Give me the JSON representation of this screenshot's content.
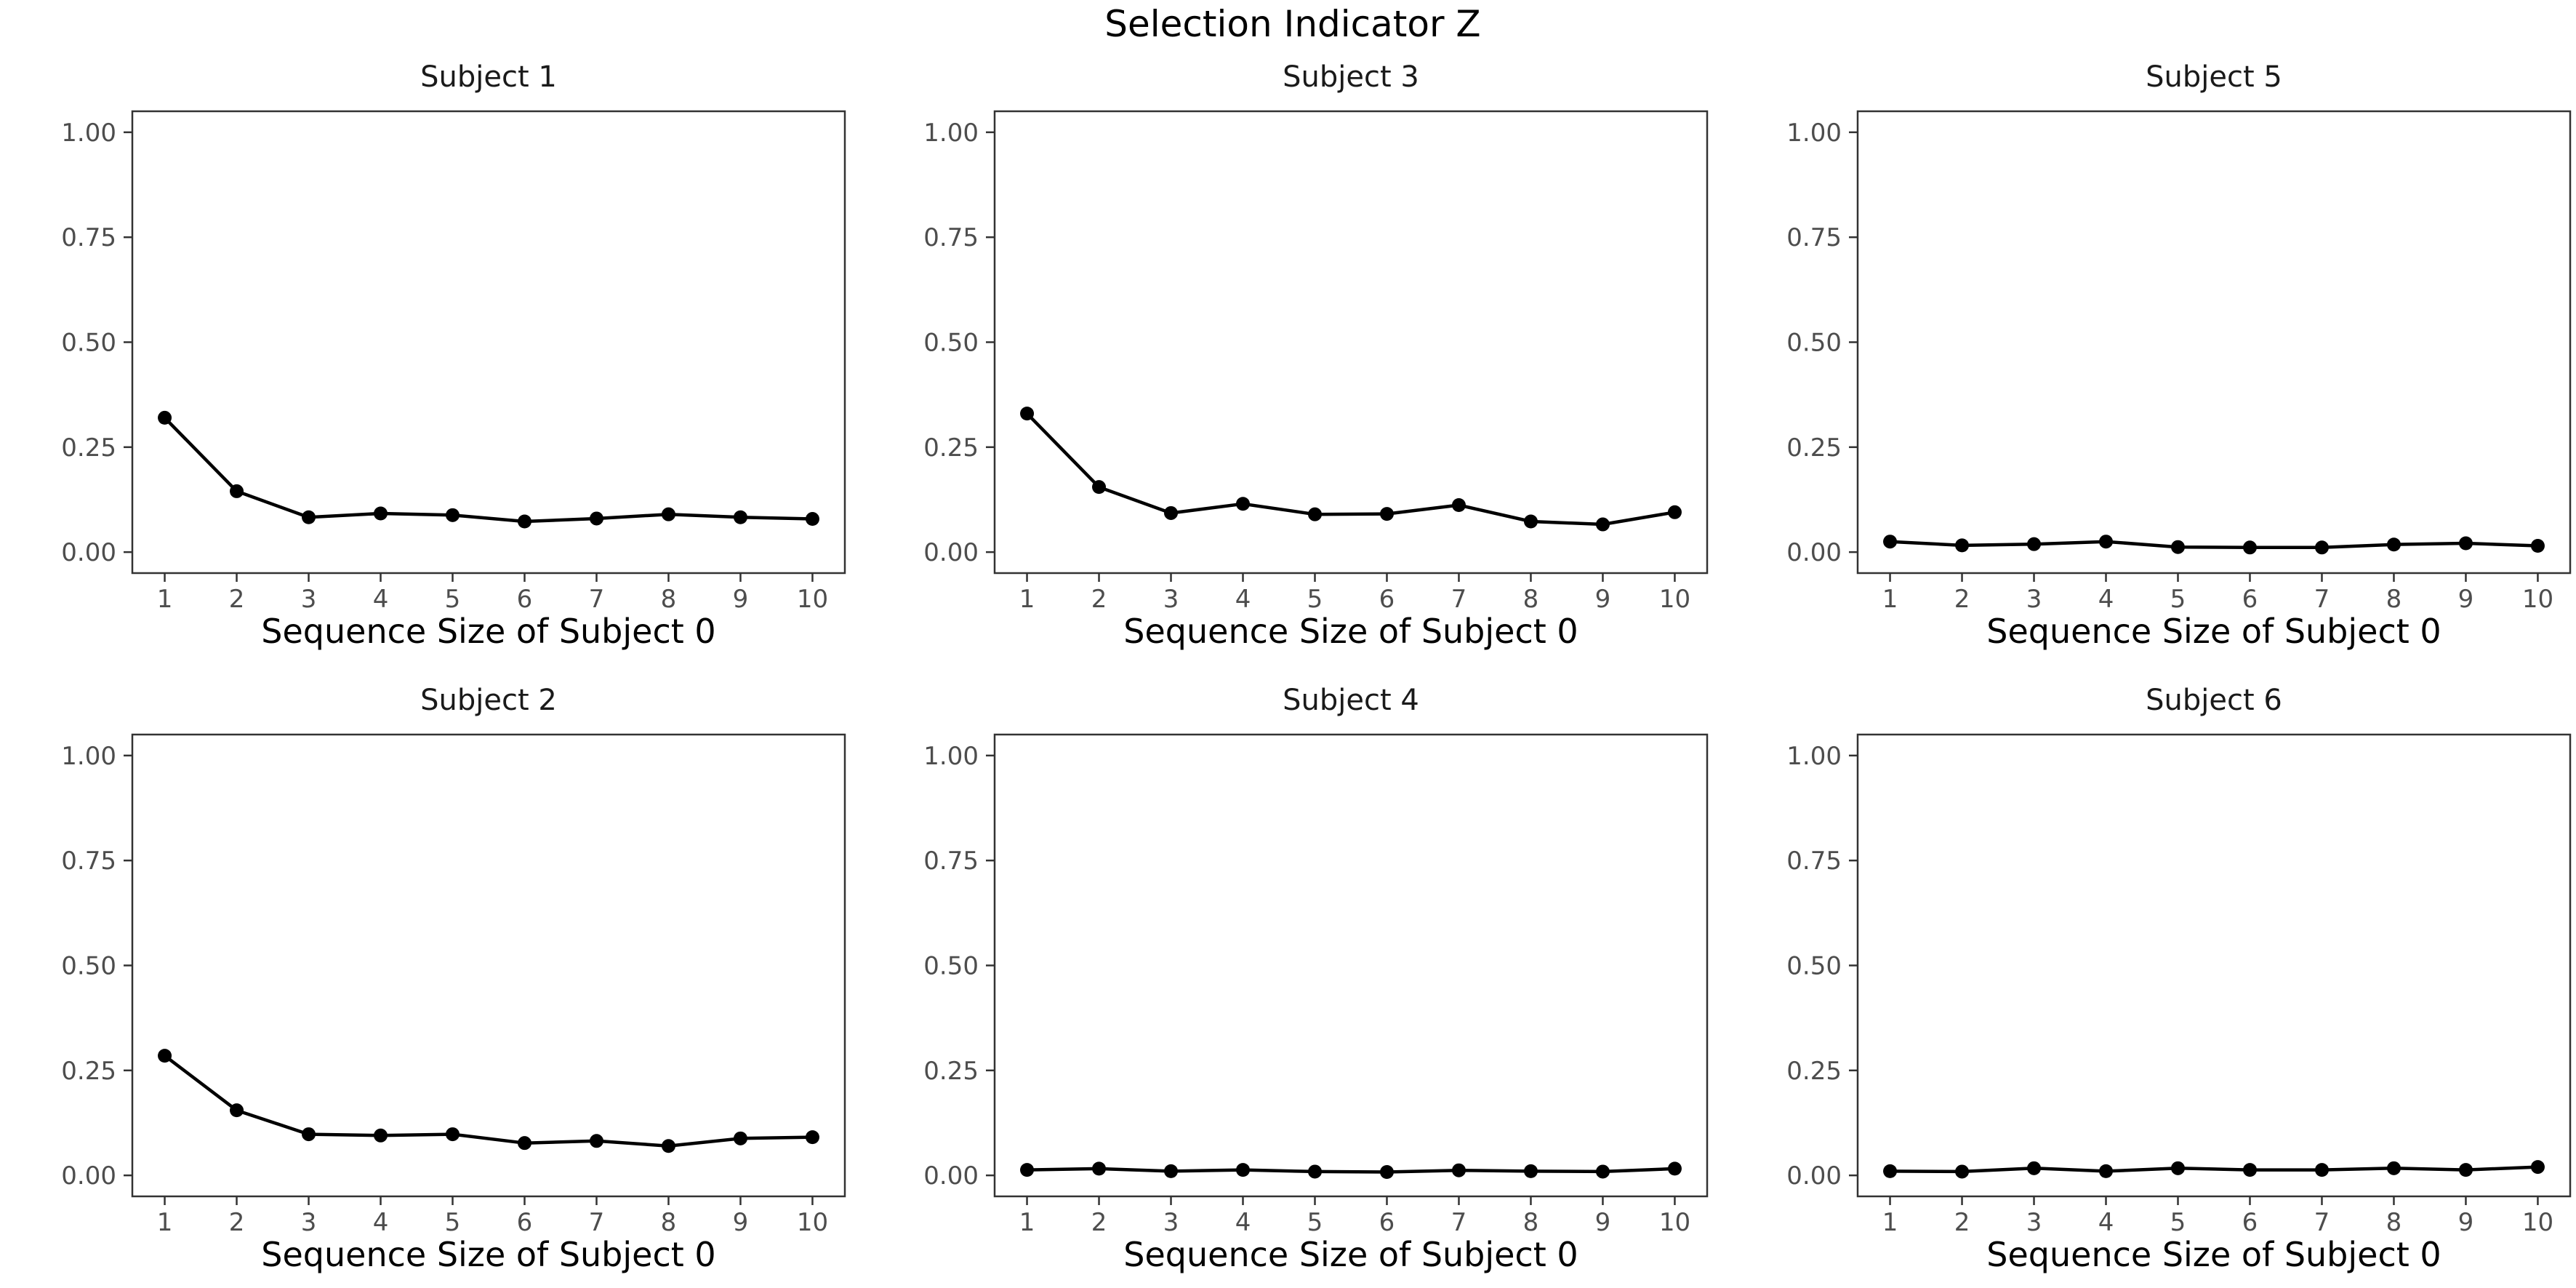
{
  "figure": {
    "title": "Selection Indicator Z"
  },
  "chart_data": [
    {
      "type": "line",
      "title": "Subject 1",
      "xlabel": "Sequence Size of Subject 0",
      "ylabel": "",
      "x": [
        1,
        2,
        3,
        4,
        5,
        6,
        7,
        8,
        9,
        10
      ],
      "values": [
        0.32,
        0.145,
        0.083,
        0.092,
        0.088,
        0.073,
        0.08,
        0.09,
        0.083,
        0.079
      ],
      "xlim": [
        0.55,
        10.45
      ],
      "ylim": [
        -0.05,
        1.05
      ],
      "yticks": [
        "0.00",
        "0.25",
        "0.50",
        "0.75",
        "1.00"
      ],
      "grid": false,
      "color": "#000000"
    },
    {
      "type": "line",
      "title": "Subject 3",
      "xlabel": "Sequence Size of Subject 0",
      "ylabel": "",
      "x": [
        1,
        2,
        3,
        4,
        5,
        6,
        7,
        8,
        9,
        10
      ],
      "values": [
        0.33,
        0.155,
        0.093,
        0.115,
        0.09,
        0.091,
        0.112,
        0.073,
        0.066,
        0.095
      ],
      "xlim": [
        0.55,
        10.45
      ],
      "ylim": [
        -0.05,
        1.05
      ],
      "yticks": [
        "0.00",
        "0.25",
        "0.50",
        "0.75",
        "1.00"
      ],
      "grid": false,
      "color": "#000000"
    },
    {
      "type": "line",
      "title": "Subject 5",
      "xlabel": "Sequence Size of Subject 0",
      "ylabel": "",
      "x": [
        1,
        2,
        3,
        4,
        5,
        6,
        7,
        8,
        9,
        10
      ],
      "values": [
        0.025,
        0.016,
        0.019,
        0.025,
        0.012,
        0.011,
        0.011,
        0.018,
        0.021,
        0.015
      ],
      "xlim": [
        0.55,
        10.45
      ],
      "ylim": [
        -0.05,
        1.05
      ],
      "yticks": [
        "0.00",
        "0.25",
        "0.50",
        "0.75",
        "1.00"
      ],
      "grid": false,
      "color": "#000000"
    },
    {
      "type": "line",
      "title": "Subject 2",
      "xlabel": "Sequence Size of Subject 0",
      "ylabel": "",
      "x": [
        1,
        2,
        3,
        4,
        5,
        6,
        7,
        8,
        9,
        10
      ],
      "values": [
        0.285,
        0.155,
        0.098,
        0.095,
        0.098,
        0.077,
        0.082,
        0.07,
        0.088,
        0.091
      ],
      "xlim": [
        0.55,
        10.45
      ],
      "ylim": [
        -0.05,
        1.05
      ],
      "yticks": [
        "0.00",
        "0.25",
        "0.50",
        "0.75",
        "1.00"
      ],
      "grid": false,
      "color": "#000000"
    },
    {
      "type": "line",
      "title": "Subject 4",
      "xlabel": "Sequence Size of Subject 0",
      "ylabel": "",
      "x": [
        1,
        2,
        3,
        4,
        5,
        6,
        7,
        8,
        9,
        10
      ],
      "values": [
        0.013,
        0.016,
        0.01,
        0.013,
        0.009,
        0.008,
        0.012,
        0.01,
        0.009,
        0.016
      ],
      "xlim": [
        0.55,
        10.45
      ],
      "ylim": [
        -0.05,
        1.05
      ],
      "yticks": [
        "0.00",
        "0.25",
        "0.50",
        "0.75",
        "1.00"
      ],
      "grid": false,
      "color": "#000000"
    },
    {
      "type": "line",
      "title": "Subject 6",
      "xlabel": "Sequence Size of Subject 0",
      "ylabel": "",
      "x": [
        1,
        2,
        3,
        4,
        5,
        6,
        7,
        8,
        9,
        10
      ],
      "values": [
        0.01,
        0.009,
        0.017,
        0.01,
        0.017,
        0.013,
        0.013,
        0.017,
        0.013,
        0.02
      ],
      "xlim": [
        0.55,
        10.45
      ],
      "ylim": [
        -0.05,
        1.05
      ],
      "yticks": [
        "0.00",
        "0.25",
        "0.50",
        "0.75",
        "1.00"
      ],
      "grid": false,
      "color": "#000000"
    }
  ]
}
